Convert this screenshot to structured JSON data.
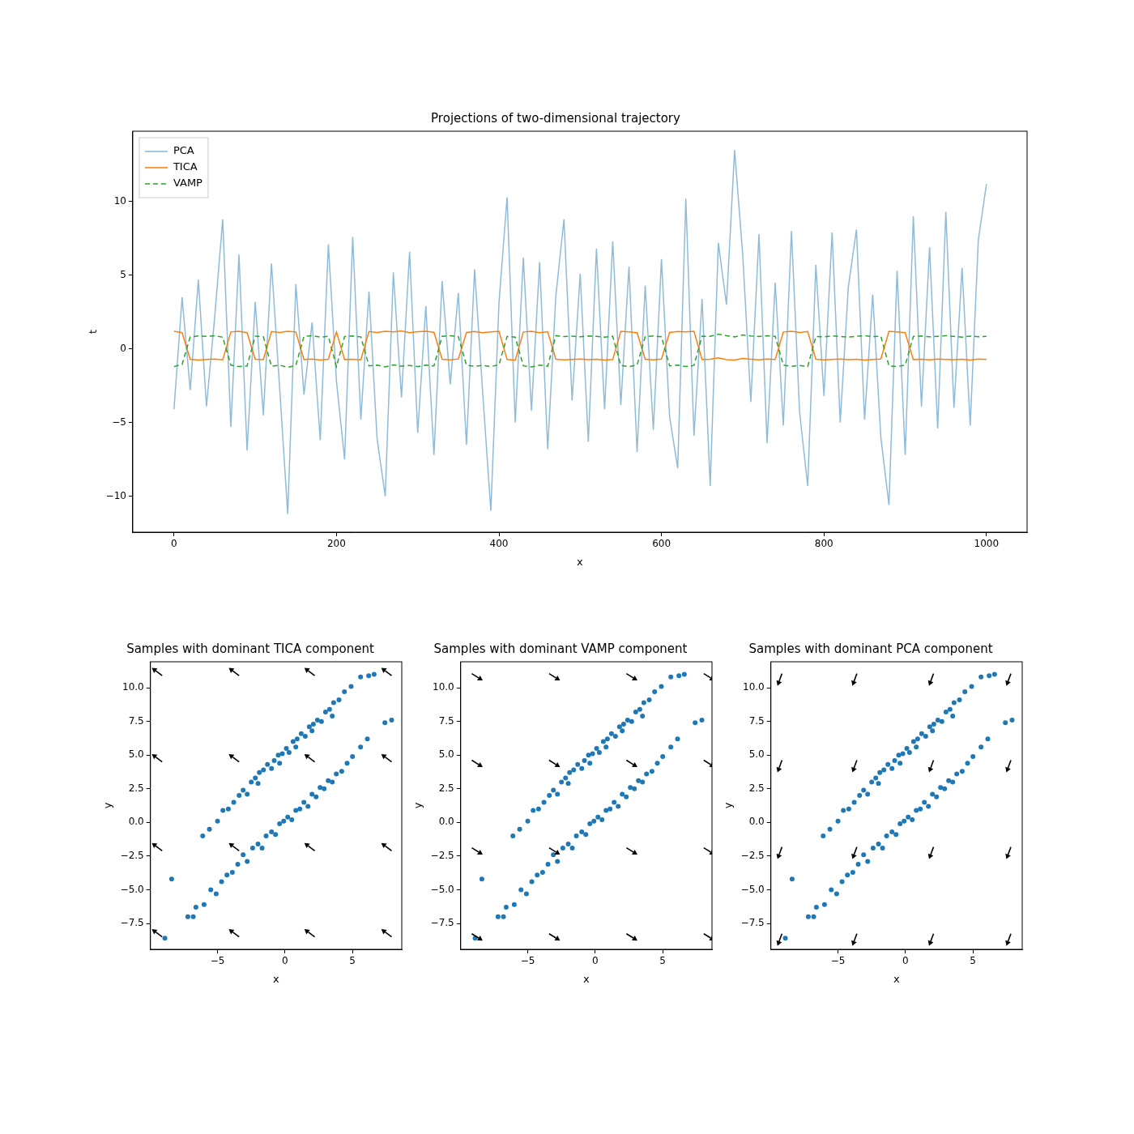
{
  "chart_data": [
    {
      "type": "line",
      "title": "Projections of two-dimensional trajectory",
      "x_label": "x",
      "y_label": "t",
      "x": [
        0,
        10,
        20,
        30,
        40,
        50,
        60,
        70,
        80,
        90,
        100,
        110,
        120,
        130,
        140,
        150,
        160,
        170,
        180,
        190,
        200,
        210,
        220,
        230,
        240,
        250,
        260,
        270,
        280,
        290,
        300,
        310,
        320,
        330,
        340,
        350,
        360,
        370,
        380,
        390,
        400,
        410,
        420,
        430,
        440,
        450,
        460,
        470,
        480,
        490,
        500,
        510,
        520,
        530,
        540,
        550,
        560,
        570,
        580,
        590,
        600,
        610,
        620,
        630,
        640,
        650,
        660,
        670,
        680,
        690,
        700,
        710,
        720,
        730,
        740,
        750,
        760,
        770,
        780,
        790,
        800,
        810,
        820,
        830,
        840,
        850,
        860,
        870,
        880,
        890,
        900,
        910,
        920,
        930,
        940,
        950,
        960,
        970,
        980,
        990,
        1000
      ],
      "series": [
        {
          "name": "PCA",
          "color": "#1f77b4",
          "line_style": "solid",
          "values": [
            -4.1,
            3.5,
            -2.8,
            4.7,
            -3.9,
            2.1,
            8.8,
            -5.3,
            6.4,
            -6.9,
            3.2,
            -4.5,
            5.8,
            -2.6,
            -11.2,
            4.4,
            -3.1,
            1.8,
            -6.2,
            7.1,
            -2.2,
            -7.5,
            7.6,
            -4.8,
            3.9,
            -6.1,
            -10.0,
            5.2,
            -3.3,
            6.6,
            -5.7,
            2.9,
            -7.2,
            4.6,
            -2.4,
            3.8,
            -6.5,
            5.4,
            -3.0,
            -11.0,
            3.1,
            10.3,
            -5.0,
            6.2,
            -4.2,
            5.9,
            -6.8,
            3.6,
            8.8,
            -3.5,
            5.1,
            -6.3,
            6.8,
            -4.1,
            7.3,
            -3.8,
            5.6,
            -7.0,
            4.3,
            -5.5,
            6.1,
            -4.6,
            -8.1,
            10.2,
            -5.9,
            3.4,
            -9.3,
            7.2,
            3.0,
            13.5,
            6.4,
            -3.6,
            7.8,
            -6.4,
            4.5,
            -5.2,
            8.0,
            -4.3,
            -9.3,
            5.7,
            -3.2,
            7.9,
            -5.0,
            4.2,
            8.1,
            -4.8,
            3.7,
            -6.0,
            -10.6,
            5.3,
            -7.2,
            9.0,
            -3.9,
            6.9,
            -5.4,
            9.3,
            -4.0,
            5.5,
            -5.2,
            7.4,
            11.2
          ]
        },
        {
          "name": "TICA",
          "color": "#ff7f0e",
          "line_style": "solid",
          "values": [
            1.2,
            1.1,
            -0.7,
            -0.75,
            -0.72,
            -0.68,
            -0.74,
            1.15,
            1.2,
            1.1,
            -0.7,
            -0.73,
            1.18,
            1.12,
            1.2,
            1.15,
            -0.72,
            -0.68,
            -0.75,
            -0.7,
            1.15,
            -0.72,
            -0.7,
            -0.74,
            1.18,
            1.12,
            1.2,
            1.15,
            1.22,
            1.1,
            1.17,
            1.2,
            1.13,
            -0.7,
            -0.74,
            -0.68,
            1.12,
            1.18,
            1.1,
            1.15,
            1.2,
            -0.72,
            -0.76,
            1.15,
            1.2,
            1.1,
            1.17,
            -0.7,
            -0.74,
            -0.71,
            -0.68,
            -0.73,
            -0.7,
            -0.75,
            -0.72,
            1.2,
            1.15,
            1.1,
            -0.7,
            -0.74,
            -0.69,
            1.12,
            1.18,
            1.15,
            1.2,
            -0.72,
            -0.7,
            -0.6,
            -0.73,
            -0.75,
            -0.65,
            -0.7,
            -0.74,
            -0.68,
            -0.71,
            1.15,
            1.2,
            1.12,
            1.18,
            -0.7,
            -0.74,
            -0.71,
            -0.68,
            -0.73,
            -0.7,
            -0.75,
            -0.72,
            -0.69,
            1.2,
            1.15,
            1.1,
            -0.72,
            -0.7,
            -0.74,
            -0.68,
            -0.71,
            -0.73,
            -0.7,
            -0.75,
            -0.69,
            -0.72
          ]
        },
        {
          "name": "VAMP",
          "color": "#2ca02c",
          "line_style": "dashed",
          "values": [
            -1.2,
            -1.05,
            0.82,
            0.88,
            0.85,
            0.9,
            0.8,
            -1.1,
            -1.2,
            -1.15,
            0.87,
            0.83,
            -1.18,
            -1.1,
            -1.25,
            -1.12,
            0.85,
            0.9,
            0.8,
            0.86,
            -1.2,
            0.84,
            0.88,
            0.82,
            -1.15,
            -1.1,
            -1.22,
            -1.08,
            -1.17,
            -1.12,
            -1.2,
            -1.1,
            -1.15,
            0.86,
            0.9,
            0.83,
            -1.1,
            -1.18,
            -1.12,
            -1.2,
            -1.08,
            0.85,
            0.8,
            -1.15,
            -1.22,
            -1.1,
            -1.17,
            0.9,
            0.84,
            0.87,
            0.82,
            0.88,
            0.85,
            0.8,
            0.86,
            -1.12,
            -1.2,
            -1.1,
            0.84,
            0.88,
            0.83,
            -1.15,
            -1.1,
            -1.2,
            -1.12,
            0.87,
            0.85,
            1.0,
            0.9,
            0.82,
            0.95,
            0.88,
            0.84,
            0.9,
            0.86,
            -1.1,
            -1.18,
            -1.12,
            -1.2,
            0.85,
            0.82,
            0.88,
            0.84,
            0.8,
            0.86,
            0.9,
            0.83,
            0.87,
            -1.15,
            -1.2,
            -1.1,
            0.84,
            0.88,
            0.82,
            0.86,
            0.9,
            0.85,
            0.8,
            0.87,
            0.83,
            0.85
          ]
        }
      ],
      "xlim": [
        -50.7,
        1050
      ],
      "ylim": [
        -12.44,
        14.78
      ],
      "xticks": [
        0,
        200,
        400,
        600,
        800,
        1000
      ],
      "yticks": [
        {
          "value": -10,
          "label": "−10"
        },
        {
          "value": -5,
          "label": "−5"
        },
        0,
        5,
        10
      ],
      "grid": false,
      "legend": "upper left"
    },
    {
      "type": "scatter",
      "title": "Samples with dominant TICA component",
      "x_label": "x",
      "y_label": "y",
      "color": "#1f77b4",
      "x": [
        -6.1,
        -5.6,
        -5.0,
        -4.6,
        -4.2,
        -3.8,
        -3.4,
        -3.1,
        -2.8,
        -2.5,
        -2.2,
        -1.9,
        -1.6,
        -1.3,
        -1.0,
        -0.8,
        -0.5,
        -0.2,
        0.1,
        0.3,
        0.6,
        0.9,
        1.2,
        1.5,
        1.8,
        2.1,
        2.4,
        2.7,
        3.0,
        3.3,
        3.6,
        4.0,
        4.4,
        4.9,
        5.6,
        6.2,
        6.6,
        -0.4,
        0.8,
        2.0,
        -2.0,
        3.5,
        -8.9,
        -8.4,
        -7.2,
        -6.6,
        -6.0,
        -5.5,
        -5.1,
        -4.7,
        -4.3,
        -3.9,
        -3.5,
        -3.1,
        -2.8,
        -2.4,
        -2.0,
        -1.7,
        -1.4,
        -1.0,
        -0.7,
        -0.4,
        -0.1,
        0.2,
        0.5,
        0.8,
        1.1,
        1.4,
        1.7,
        2.0,
        2.3,
        2.6,
        2.9,
        3.2,
        3.5,
        3.8,
        4.2,
        4.6,
        5.0,
        5.6,
        6.1,
        7.4,
        7.9,
        -6.8
      ],
      "y": [
        -1.0,
        -0.5,
        0.1,
        0.9,
        1.0,
        1.5,
        2.0,
        2.4,
        2.1,
        3.0,
        3.3,
        3.7,
        3.9,
        4.3,
        4.0,
        4.6,
        5.0,
        5.1,
        5.5,
        5.2,
        6.0,
        6.2,
        6.6,
        6.4,
        7.1,
        7.3,
        7.6,
        7.5,
        8.2,
        8.4,
        8.9,
        9.1,
        9.7,
        10.1,
        10.8,
        10.9,
        11.0,
        4.4,
        5.6,
        6.8,
        2.9,
        7.9,
        -8.6,
        -4.2,
        -7.0,
        -6.3,
        -6.1,
        -5.0,
        -5.3,
        -4.4,
        -3.9,
        -3.7,
        -3.1,
        -2.4,
        -2.9,
        -1.9,
        -1.6,
        -1.9,
        -1.0,
        -0.7,
        -0.9,
        -0.1,
        0.1,
        0.4,
        0.2,
        0.9,
        1.0,
        1.5,
        1.2,
        2.1,
        1.9,
        2.6,
        2.5,
        3.1,
        3.0,
        3.6,
        3.8,
        4.4,
        4.9,
        5.6,
        6.2,
        7.4,
        7.6,
        -7.0
      ],
      "arrows": {
        "x": [
          -9.1,
          -3.4,
          2.2,
          7.9
        ],
        "y": [
          10.9,
          4.5,
          -2.1,
          -8.5
        ],
        "u": -0.8,
        "v": 0.6
      },
      "xlim": [
        -9.97,
        8.65
      ],
      "ylim": [
        -9.42,
        11.93
      ],
      "xticks": [
        {
          "value": -5,
          "label": "−5"
        },
        0,
        5
      ],
      "yticks": [
        {
          "value": -7.5,
          "label": "−7.5"
        },
        {
          "value": -5,
          "label": "−5.0"
        },
        {
          "value": -2.5,
          "label": "−2.5"
        },
        {
          "value": 0,
          "label": "0.0"
        },
        2.5,
        {
          "value": 5,
          "label": "5.0"
        },
        7.5,
        {
          "value": 10,
          "label": "10.0"
        }
      ],
      "grid": false
    },
    {
      "type": "scatter",
      "title": "Samples with dominant VAMP component",
      "x_label": "x",
      "y_label": "y",
      "color": "#1f77b4",
      "x": [
        -6.1,
        -5.6,
        -5.0,
        -4.6,
        -4.2,
        -3.8,
        -3.4,
        -3.1,
        -2.8,
        -2.5,
        -2.2,
        -1.9,
        -1.6,
        -1.3,
        -1.0,
        -0.8,
        -0.5,
        -0.2,
        0.1,
        0.3,
        0.6,
        0.9,
        1.2,
        1.5,
        1.8,
        2.1,
        2.4,
        2.7,
        3.0,
        3.3,
        3.6,
        4.0,
        4.4,
        4.9,
        5.6,
        6.2,
        6.6,
        -0.4,
        0.8,
        2.0,
        -2.0,
        3.5,
        -8.9,
        -8.4,
        -7.2,
        -6.6,
        -6.0,
        -5.5,
        -5.1,
        -4.7,
        -4.3,
        -3.9,
        -3.5,
        -3.1,
        -2.8,
        -2.4,
        -2.0,
        -1.7,
        -1.4,
        -1.0,
        -0.7,
        -0.4,
        -0.1,
        0.2,
        0.5,
        0.8,
        1.1,
        1.4,
        1.7,
        2.0,
        2.3,
        2.6,
        2.9,
        3.2,
        3.5,
        3.8,
        4.2,
        4.6,
        5.0,
        5.6,
        6.1,
        7.4,
        7.9,
        -6.8
      ],
      "y": [
        -1.0,
        -0.5,
        0.1,
        0.9,
        1.0,
        1.5,
        2.0,
        2.4,
        2.1,
        3.0,
        3.3,
        3.7,
        3.9,
        4.3,
        4.0,
        4.6,
        5.0,
        5.1,
        5.5,
        5.2,
        6.0,
        6.2,
        6.6,
        6.4,
        7.1,
        7.3,
        7.6,
        7.5,
        8.2,
        8.4,
        8.9,
        9.1,
        9.7,
        10.1,
        10.8,
        10.9,
        11.0,
        4.4,
        5.6,
        6.8,
        2.9,
        7.9,
        -8.6,
        -4.2,
        -7.0,
        -6.3,
        -6.1,
        -5.0,
        -5.3,
        -4.4,
        -3.9,
        -3.7,
        -3.1,
        -2.4,
        -2.9,
        -1.9,
        -1.6,
        -1.9,
        -1.0,
        -0.7,
        -0.9,
        -0.1,
        0.1,
        0.4,
        0.2,
        0.9,
        1.0,
        1.5,
        1.2,
        2.1,
        1.9,
        2.6,
        2.5,
        3.1,
        3.0,
        3.6,
        3.8,
        4.4,
        4.9,
        5.6,
        6.2,
        7.4,
        7.6,
        -7.0
      ],
      "arrows": {
        "x": [
          -9.15,
          -3.42,
          2.31,
          8.04
        ],
        "y": [
          11.05,
          4.62,
          -1.88,
          -8.26
        ],
        "u": 0.8,
        "v": -0.5
      },
      "xlim": [
        -9.97,
        8.65
      ],
      "ylim": [
        -9.42,
        11.93
      ],
      "xticks": [
        {
          "value": -5,
          "label": "−5"
        },
        0,
        5
      ],
      "yticks": [
        {
          "value": -7.5,
          "label": "−7.5"
        },
        {
          "value": -5,
          "label": "−5.0"
        },
        {
          "value": -2.5,
          "label": "−2.5"
        },
        {
          "value": 0,
          "label": "0.0"
        },
        2.5,
        {
          "value": 5,
          "label": "5.0"
        },
        7.5,
        {
          "value": 10,
          "label": "10.0"
        }
      ],
      "grid": false
    },
    {
      "type": "scatter",
      "title": "Samples with dominant PCA component",
      "x_label": "x",
      "y_label": "y",
      "color": "#1f77b4",
      "x": [
        -6.1,
        -5.6,
        -5.0,
        -4.6,
        -4.2,
        -3.8,
        -3.4,
        -3.1,
        -2.8,
        -2.5,
        -2.2,
        -1.9,
        -1.6,
        -1.3,
        -1.0,
        -0.8,
        -0.5,
        -0.2,
        0.1,
        0.3,
        0.6,
        0.9,
        1.2,
        1.5,
        1.8,
        2.1,
        2.4,
        2.7,
        3.0,
        3.3,
        3.6,
        4.0,
        4.4,
        4.9,
        5.6,
        6.2,
        6.6,
        -0.4,
        0.8,
        2.0,
        -2.0,
        3.5,
        -8.9,
        -8.4,
        -7.2,
        -6.6,
        -6.0,
        -5.5,
        -5.1,
        -4.7,
        -4.3,
        -3.9,
        -3.5,
        -3.1,
        -2.8,
        -2.4,
        -2.0,
        -1.7,
        -1.4,
        -1.0,
        -0.7,
        -0.4,
        -0.1,
        0.2,
        0.5,
        0.8,
        1.1,
        1.4,
        1.7,
        2.0,
        2.3,
        2.6,
        2.9,
        3.2,
        3.5,
        3.8,
        4.2,
        4.6,
        5.0,
        5.6,
        6.1,
        7.4,
        7.9,
        -6.8
      ],
      "y": [
        -1.0,
        -0.5,
        0.1,
        0.9,
        1.0,
        1.5,
        2.0,
        2.4,
        2.1,
        3.0,
        3.3,
        3.7,
        3.9,
        4.3,
        4.0,
        4.6,
        5.0,
        5.1,
        5.5,
        5.2,
        6.0,
        6.2,
        6.6,
        6.4,
        7.1,
        7.3,
        7.6,
        7.5,
        8.2,
        8.4,
        8.9,
        9.1,
        9.7,
        10.1,
        10.8,
        10.9,
        11.0,
        4.4,
        5.6,
        6.8,
        2.9,
        7.9,
        -8.6,
        -4.2,
        -7.0,
        -6.3,
        -6.1,
        -5.0,
        -5.3,
        -4.4,
        -3.9,
        -3.7,
        -3.1,
        -2.4,
        -2.9,
        -1.9,
        -1.6,
        -1.9,
        -1.0,
        -0.7,
        -0.9,
        -0.1,
        0.1,
        0.4,
        0.2,
        0.9,
        1.0,
        1.5,
        1.2,
        2.1,
        1.9,
        2.6,
        2.5,
        3.1,
        3.0,
        3.6,
        3.8,
        4.4,
        4.9,
        5.6,
        6.2,
        7.4,
        7.6,
        -7.0
      ],
      "arrows": {
        "x": [
          -9.15,
          -3.6,
          2.08,
          7.81
        ],
        "y": [
          11.05,
          4.62,
          -1.82,
          -8.26
        ],
        "u": -0.35,
        "v": -0.94
      },
      "xlim": [
        -9.97,
        8.65
      ],
      "ylim": [
        -9.42,
        11.93
      ],
      "xticks": [
        {
          "value": -5,
          "label": "−5"
        },
        0,
        5
      ],
      "yticks": [
        {
          "value": -7.5,
          "label": "−7.5"
        },
        {
          "value": -5,
          "label": "−5.0"
        },
        {
          "value": -2.5,
          "label": "−2.5"
        },
        {
          "value": 0,
          "label": "0.0"
        },
        2.5,
        {
          "value": 5,
          "label": "5.0"
        },
        7.5,
        {
          "value": 10,
          "label": "10.0"
        }
      ],
      "grid": false
    }
  ]
}
